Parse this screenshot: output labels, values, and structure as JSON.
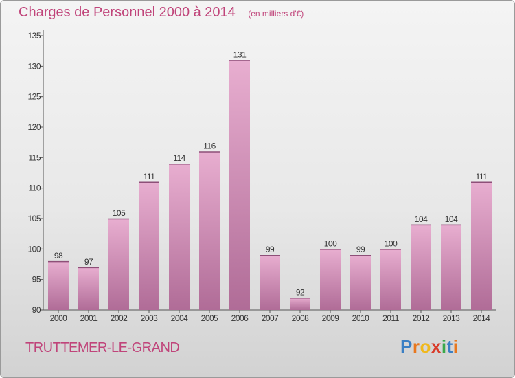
{
  "header": {
    "title": "Charges de Personnel 2000 à 2014",
    "unit": "(en milliers d'€)"
  },
  "footer": {
    "place": "TRUTTEMER-LE-GRAND",
    "logo_letters": [
      "P",
      "r",
      "o",
      "x",
      "i",
      "t",
      "i"
    ],
    "logo_colors": [
      "#3a7fc4",
      "#e8771e",
      "#f0b81c",
      "#d93c2a",
      "#3aa84a",
      "#3a7fc4",
      "#e8771e"
    ]
  },
  "chart_data": {
    "type": "bar",
    "title": "Charges de Personnel 2000 à 2014",
    "xlabel": "",
    "ylabel": "",
    "categories": [
      "2000",
      "2001",
      "2002",
      "2003",
      "2004",
      "2005",
      "2006",
      "2007",
      "2008",
      "2009",
      "2010",
      "2011",
      "2012",
      "2013",
      "2014"
    ],
    "values": [
      98,
      97,
      105,
      111,
      114,
      116,
      131,
      99,
      92,
      100,
      99,
      100,
      104,
      104,
      111
    ],
    "ylim": [
      90,
      135
    ],
    "yticks": [
      90,
      95,
      100,
      105,
      110,
      115,
      120,
      125,
      130,
      135
    ],
    "grid": false,
    "bar_color_top": "#e8aed0",
    "bar_color_bottom": "#b06c97",
    "axis_color": "#555555",
    "label_color": "#333333"
  }
}
